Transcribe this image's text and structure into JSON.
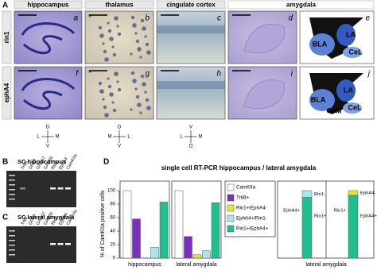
{
  "panel_a": {
    "label": "A",
    "columns": [
      "hippocampus",
      "thalamus",
      "cingulate cortex",
      "amygdala"
    ],
    "rows": [
      "rin1",
      "ephA4"
    ],
    "panels": [
      "a",
      "b",
      "c",
      "d",
      "e",
      "f",
      "g",
      "h",
      "i",
      "j"
    ],
    "schematic": {
      "top": [
        "BLA",
        "LA",
        "CeL"
      ],
      "bottom": [
        "BLA",
        "LA",
        "CeM",
        "CeL"
      ]
    },
    "orientation": [
      [
        "D",
        "L",
        "M",
        "V"
      ],
      [
        "D",
        "M",
        "L",
        "V"
      ],
      [
        "V",
        "L",
        "M",
        "D"
      ]
    ]
  },
  "panel_b": {
    "label": "B",
    "title": "SC hippocampus",
    "lanes": [
      "TrkB",
      "GFAP",
      "GAD67",
      "GAD65",
      "Rin1",
      "EphA4",
      "CamKIIa"
    ]
  },
  "panel_c": {
    "label": "C",
    "title": "SC lateral amygdala",
    "lanes": [
      "TrkB",
      "GFAP",
      "GAD67",
      "GAD65",
      "Rin1",
      "EphA4",
      "CamKIIa"
    ]
  },
  "panel_d": {
    "label": "D",
    "title": "single cell RT-PCR hippocampus / lateral amygdala",
    "y_label": "% of CamKIIa positive cells"
  },
  "chart_data": [
    {
      "type": "bar",
      "categories": [
        "hippocampus",
        "lateral amygdala"
      ],
      "series": [
        {
          "name": "CamKIIa",
          "color": "#ffffff",
          "values": [
            100,
            100
          ]
        },
        {
          "name": "TrkB+",
          "color": "#7b2fbf",
          "values": [
            58,
            32
          ]
        },
        {
          "name": "Rin1+/EphA4-",
          "color": "#e6e62e",
          "values": [
            0,
            5
          ]
        },
        {
          "name": "EphA4+/Rin1-",
          "color": "#a8e6f0",
          "values": [
            16,
            11
          ]
        },
        {
          "name": "Rin1+/EphA4+",
          "color": "#1fbf8f",
          "values": [
            83,
            82
          ]
        }
      ],
      "ylim": [
        0,
        100
      ],
      "yticks": [
        0,
        20,
        40,
        60,
        80,
        100
      ],
      "legend": "right"
    },
    {
      "type": "stacked_bar",
      "group": "lateral amygdala",
      "ylim": [
        0,
        100
      ],
      "bars": [
        {
          "category": "EphA4+",
          "segments": [
            {
              "name": "Rin1+",
              "color": "#1fbf8f",
              "value": 90
            },
            {
              "name": "Rin1-",
              "color": "#a8e6f0",
              "value": 10
            }
          ]
        },
        {
          "category": "Rin1+",
          "segments": [
            {
              "name": "EphA4+",
              "color": "#1fbf8f",
              "value": 93
            },
            {
              "name": "EphA4-",
              "color": "#e6e62e",
              "value": 7
            }
          ]
        }
      ]
    }
  ]
}
